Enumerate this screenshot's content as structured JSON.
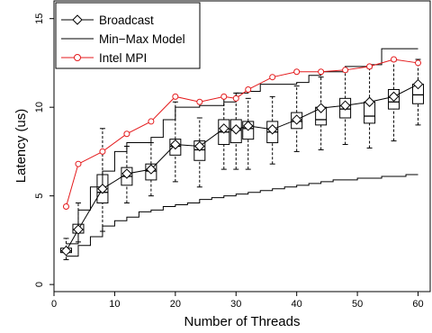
{
  "chart_data": {
    "type": "line",
    "xlabel": "Number of Threads",
    "ylabel": "Latency (us)",
    "xlim": [
      0,
      62
    ],
    "ylim": [
      -0.4,
      16.0
    ],
    "x_ticks": [
      0,
      10,
      20,
      30,
      40,
      50,
      60
    ],
    "y_ticks": [
      0,
      5,
      10,
      15
    ],
    "grid": false,
    "legend_position": "top-left",
    "legend": [
      {
        "label": "Broadcast",
        "marker": "diamond",
        "color": "#000000"
      },
      {
        "label": "Min−Max Model",
        "marker": "none",
        "color": "#000000"
      },
      {
        "label": "Intel MPI",
        "marker": "circle",
        "color": "#e41a1c"
      }
    ],
    "series": [
      {
        "name": "Broadcast",
        "color": "#000000",
        "marker": "diamond",
        "x": [
          2,
          4,
          8,
          12,
          16,
          20,
          24,
          28,
          30,
          32,
          36,
          40,
          44,
          48,
          52,
          56,
          60
        ],
        "y": [
          1.9,
          3.1,
          5.4,
          6.25,
          6.5,
          7.9,
          7.8,
          8.8,
          8.75,
          8.95,
          8.75,
          9.3,
          9.95,
          10.1,
          10.3,
          10.6,
          11.3
        ],
        "box": {
          "whisker_low": [
            1.4,
            2.4,
            3.0,
            4.6,
            5.0,
            5.8,
            5.5,
            6.5,
            6.5,
            6.5,
            6.8,
            7.5,
            7.6,
            7.9,
            7.7,
            8.1,
            9.0
          ],
          "q1": [
            1.8,
            2.9,
            4.6,
            5.6,
            5.9,
            7.3,
            7.0,
            7.9,
            8.0,
            8.2,
            8.0,
            8.8,
            9.0,
            9.4,
            9.1,
            9.9,
            10.2
          ],
          "median": [
            1.9,
            3.1,
            5.2,
            6.1,
            6.4,
            7.8,
            7.6,
            8.6,
            8.7,
            8.8,
            8.6,
            9.2,
            9.3,
            9.9,
            9.5,
            10.3,
            10.7
          ],
          "q3": [
            2.05,
            3.4,
            6.2,
            6.6,
            6.8,
            8.2,
            8.1,
            9.3,
            9.3,
            9.2,
            9.2,
            9.7,
            10.0,
            10.5,
            10.3,
            11.0,
            11.3
          ],
          "whisker_high": [
            2.6,
            4.6,
            8.8,
            7.8,
            8.0,
            10.3,
            9.4,
            10.6,
            10.8,
            10.5,
            10.6,
            11.2,
            11.7,
            12.0,
            12.2,
            12.6,
            12.7
          ]
        }
      },
      {
        "name": "Min−Max Model (upper)",
        "color": "#000000",
        "marker": "none",
        "step": true,
        "x": [
          2,
          4,
          6,
          8,
          10,
          12,
          14,
          16,
          18,
          20,
          22,
          24,
          26,
          28,
          30,
          32,
          34,
          36,
          38,
          40,
          42,
          44,
          46,
          48,
          50,
          52,
          54,
          56,
          58,
          60
        ],
        "y": [
          2.3,
          4.2,
          5.5,
          6.4,
          7.5,
          8.0,
          8.0,
          8.3,
          9.3,
          10.0,
          10.0,
          10.1,
          10.1,
          10.3,
          10.8,
          10.9,
          11.3,
          11.3,
          11.3,
          11.4,
          11.8,
          12.0,
          12.0,
          12.3,
          12.3,
          12.4,
          13.3,
          13.3,
          13.3,
          13.3
        ]
      },
      {
        "name": "Min−Max Model (lower)",
        "color": "#000000",
        "marker": "none",
        "step": true,
        "x": [
          2,
          4,
          6,
          8,
          10,
          12,
          14,
          16,
          18,
          20,
          22,
          24,
          26,
          28,
          30,
          32,
          34,
          36,
          38,
          40,
          42,
          44,
          46,
          48,
          50,
          52,
          54,
          56,
          58,
          60
        ],
        "y": [
          1.6,
          2.2,
          2.7,
          3.3,
          3.6,
          3.8,
          4.1,
          4.2,
          4.4,
          4.5,
          4.6,
          4.8,
          4.9,
          5.0,
          5.1,
          5.2,
          5.3,
          5.4,
          5.5,
          5.6,
          5.7,
          5.8,
          5.9,
          5.9,
          6.0,
          6.0,
          6.1,
          6.1,
          6.2,
          6.2
        ]
      },
      {
        "name": "Intel MPI",
        "color": "#e41a1c",
        "marker": "circle",
        "x": [
          2,
          4,
          8,
          12,
          16,
          20,
          24,
          28,
          30,
          32,
          36,
          40,
          44,
          48,
          52,
          56,
          60
        ],
        "y": [
          4.4,
          6.8,
          7.5,
          8.5,
          9.2,
          10.6,
          10.3,
          10.6,
          10.5,
          11.0,
          11.7,
          12.0,
          12.0,
          12.1,
          12.3,
          12.7,
          12.5
        ]
      }
    ]
  }
}
